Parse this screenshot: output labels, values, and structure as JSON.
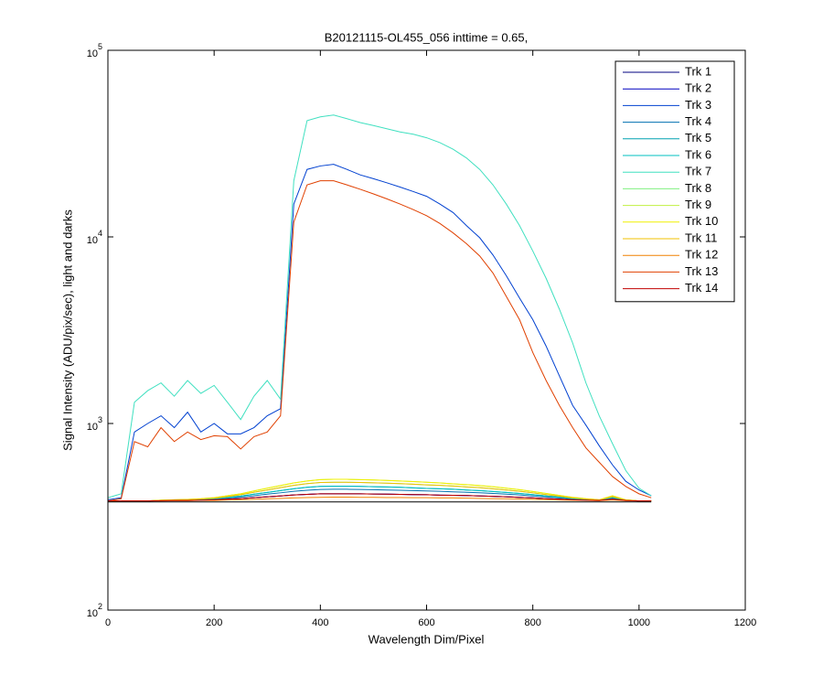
{
  "chart_data": {
    "type": "line",
    "title": "B20121115-OL455_056 inttime = 0.65,",
    "x_label": "Wavelength Dim/Pixel",
    "y_label": "Signal Intensity (ADU/pix/sec), light and darks",
    "xlim": [
      0,
      1200
    ],
    "xticks": [
      0,
      200,
      400,
      600,
      800,
      1000,
      1200
    ],
    "ylim": [
      100,
      100000
    ],
    "yscale": "log",
    "yticks": [
      {
        "value": 100,
        "label": "10^2"
      },
      {
        "value": 1000,
        "label": "10^3"
      },
      {
        "value": 10000,
        "label": "10^4"
      },
      {
        "value": 100000,
        "label": "10^5"
      }
    ],
    "legend": "upper right",
    "x": [
      0,
      25,
      50,
      75,
      100,
      125,
      150,
      175,
      200,
      225,
      250,
      275,
      300,
      325,
      350,
      375,
      400,
      425,
      450,
      475,
      500,
      525,
      550,
      575,
      600,
      625,
      650,
      675,
      700,
      725,
      750,
      775,
      800,
      825,
      850,
      875,
      900,
      925,
      950,
      975,
      1000,
      1023
    ],
    "series": [
      {
        "name": "Trk 1",
        "color": "#000080",
        "values": [
          385,
          385,
          385,
          385,
          386,
          387,
          387,
          388,
          390,
          393,
          396,
          400,
          405,
          409,
          414,
          417,
          420,
          420,
          420,
          420,
          419,
          418,
          417,
          416,
          415,
          413,
          412,
          411,
          409,
          407,
          405,
          402,
          399,
          396,
          393,
          390,
          388,
          387,
          393,
          387,
          385,
          385
        ]
      },
      {
        "name": "Trk 2",
        "color": "#0000C0",
        "values": [
          385,
          385,
          385,
          385,
          386,
          387,
          387,
          388,
          390,
          393,
          396,
          400,
          405,
          409,
          414,
          417,
          420,
          420,
          420,
          420,
          419,
          418,
          417,
          416,
          415,
          413,
          412,
          411,
          409,
          407,
          405,
          402,
          399,
          396,
          393,
          390,
          388,
          387,
          393,
          387,
          385,
          385
        ]
      },
      {
        "name": "Trk 3",
        "color": "#0040D0",
        "values": [
          390,
          400,
          900,
          1000,
          1100,
          950,
          1150,
          900,
          1000,
          880,
          880,
          950,
          1100,
          1200,
          15000,
          23000,
          24000,
          24500,
          23000,
          21500,
          20500,
          19500,
          18500,
          17500,
          16500,
          15000,
          13500,
          11500,
          9900,
          8000,
          6200,
          4700,
          3600,
          2600,
          1800,
          1250,
          980,
          760,
          600,
          490,
          440,
          410
        ]
      },
      {
        "name": "Trk 4",
        "color": "#0070B0",
        "values": [
          385,
          385,
          385,
          385,
          387,
          388,
          389,
          390,
          393,
          398,
          403,
          410,
          418,
          425,
          433,
          439,
          443,
          444,
          444,
          443,
          442,
          440,
          439,
          437,
          435,
          433,
          430,
          428,
          425,
          422,
          418,
          414,
          409,
          404,
          399,
          394,
          390,
          388,
          398,
          388,
          385,
          385
        ]
      },
      {
        "name": "Trk 5",
        "color": "#00A0B0",
        "values": [
          385,
          385,
          385,
          385,
          387,
          388,
          390,
          392,
          395,
          401,
          408,
          418,
          427,
          437,
          447,
          455,
          460,
          461,
          461,
          460,
          458,
          457,
          455,
          452,
          449,
          447,
          444,
          440,
          437,
          432,
          427,
          422,
          416,
          409,
          403,
          396,
          392,
          388,
          401,
          388,
          385,
          385
        ]
      },
      {
        "name": "Trk 6",
        "color": "#00C0C0",
        "values": [
          385,
          385,
          385,
          385,
          387,
          388,
          390,
          392,
          395,
          401,
          408,
          418,
          427,
          437,
          447,
          455,
          460,
          461,
          461,
          460,
          458,
          457,
          455,
          452,
          449,
          447,
          444,
          440,
          437,
          432,
          427,
          422,
          416,
          409,
          403,
          396,
          392,
          388,
          401,
          388,
          385,
          385
        ]
      },
      {
        "name": "Trk 7",
        "color": "#40E0C0",
        "values": [
          400,
          420,
          1300,
          1500,
          1650,
          1400,
          1700,
          1450,
          1600,
          1300,
          1050,
          1400,
          1700,
          1350,
          20000,
          42000,
          44000,
          45000,
          43000,
          41000,
          39500,
          38000,
          36500,
          35500,
          34000,
          32000,
          29500,
          26500,
          23000,
          19000,
          15000,
          11500,
          8400,
          6000,
          4100,
          2700,
          1650,
          1100,
          780,
          560,
          450,
          410
        ]
      },
      {
        "name": "Trk 8",
        "color": "#80F080",
        "values": [
          385,
          385,
          385,
          385,
          388,
          389,
          391,
          394,
          398,
          406,
          415,
          428,
          440,
          453,
          466,
          476,
          483,
          484,
          484,
          483,
          481,
          479,
          476,
          473,
          469,
          466,
          462,
          457,
          453,
          447,
          440,
          433,
          425,
          416,
          408,
          399,
          394,
          389,
          406,
          389,
          385,
          385
        ]
      },
      {
        "name": "Trk 9",
        "color": "#C0F040",
        "values": [
          385,
          385,
          385,
          385,
          388,
          390,
          392,
          395,
          400,
          410,
          420,
          435,
          450,
          465,
          480,
          492,
          500,
          502,
          502,
          500,
          498,
          495,
          492,
          488,
          484,
          480,
          475,
          470,
          465,
          458,
          450,
          442,
          432,
          422,
          412,
          402,
          395,
          390,
          410,
          390,
          385,
          385
        ]
      },
      {
        "name": "Trk 10",
        "color": "#F0F000",
        "values": [
          385,
          385,
          385,
          385,
          388,
          390,
          392,
          395,
          400,
          410,
          420,
          435,
          450,
          465,
          480,
          492,
          500,
          502,
          502,
          500,
          498,
          495,
          492,
          488,
          484,
          480,
          475,
          470,
          465,
          458,
          450,
          442,
          432,
          422,
          412,
          402,
          395,
          390,
          410,
          390,
          385,
          385
        ]
      },
      {
        "name": "Trk 11",
        "color": "#F0C000",
        "values": [
          385,
          385,
          385,
          385,
          388,
          389,
          391,
          394,
          398,
          406,
          415,
          428,
          440,
          453,
          466,
          476,
          483,
          484,
          484,
          483,
          481,
          479,
          476,
          473,
          469,
          466,
          462,
          457,
          453,
          447,
          440,
          433,
          425,
          416,
          408,
          399,
          394,
          389,
          406,
          389,
          385,
          385
        ]
      },
      {
        "name": "Trk 12",
        "color": "#F08000",
        "values": [
          385,
          385,
          385,
          385,
          385,
          386,
          386,
          387,
          387,
          389,
          390,
          392,
          395,
          397,
          399,
          401,
          402,
          403,
          403,
          402,
          402,
          401,
          401,
          400,
          400,
          399,
          399,
          398,
          397,
          396,
          395,
          394,
          392,
          391,
          389,
          388,
          387,
          386,
          389,
          386,
          385,
          385
        ]
      },
      {
        "name": "Trk 13",
        "color": "#E04000",
        "values": [
          385,
          395,
          800,
          750,
          950,
          800,
          900,
          820,
          860,
          850,
          730,
          850,
          900,
          1100,
          12000,
          19000,
          20000,
          20000,
          19000,
          18000,
          17000,
          16000,
          15000,
          14000,
          13000,
          11800,
          10500,
          9200,
          7900,
          6400,
          4800,
          3600,
          2400,
          1700,
          1250,
          950,
          740,
          620,
          520,
          460,
          420,
          400
        ]
      },
      {
        "name": "Trk 14",
        "color": "#C00000",
        "values": [
          385,
          385,
          385,
          385,
          386,
          387,
          387,
          388,
          390,
          393,
          396,
          400,
          405,
          409,
          414,
          417,
          420,
          420,
          420,
          420,
          419,
          418,
          417,
          416,
          415,
          413,
          412,
          411,
          409,
          407,
          405,
          402,
          399,
          396,
          393,
          390,
          388,
          387,
          393,
          387,
          385,
          385
        ]
      },
      {
        "color": "#000000",
        "values": [
          380,
          380,
          380,
          380,
          380,
          380,
          380,
          380,
          380,
          380,
          380,
          380,
          380,
          380,
          380,
          380,
          380,
          380,
          380,
          380,
          380,
          380,
          380,
          380,
          380,
          380,
          380,
          380,
          380,
          380,
          380,
          380,
          380,
          380,
          380,
          380,
          380,
          380,
          380,
          380,
          380,
          380
        ]
      }
    ]
  }
}
